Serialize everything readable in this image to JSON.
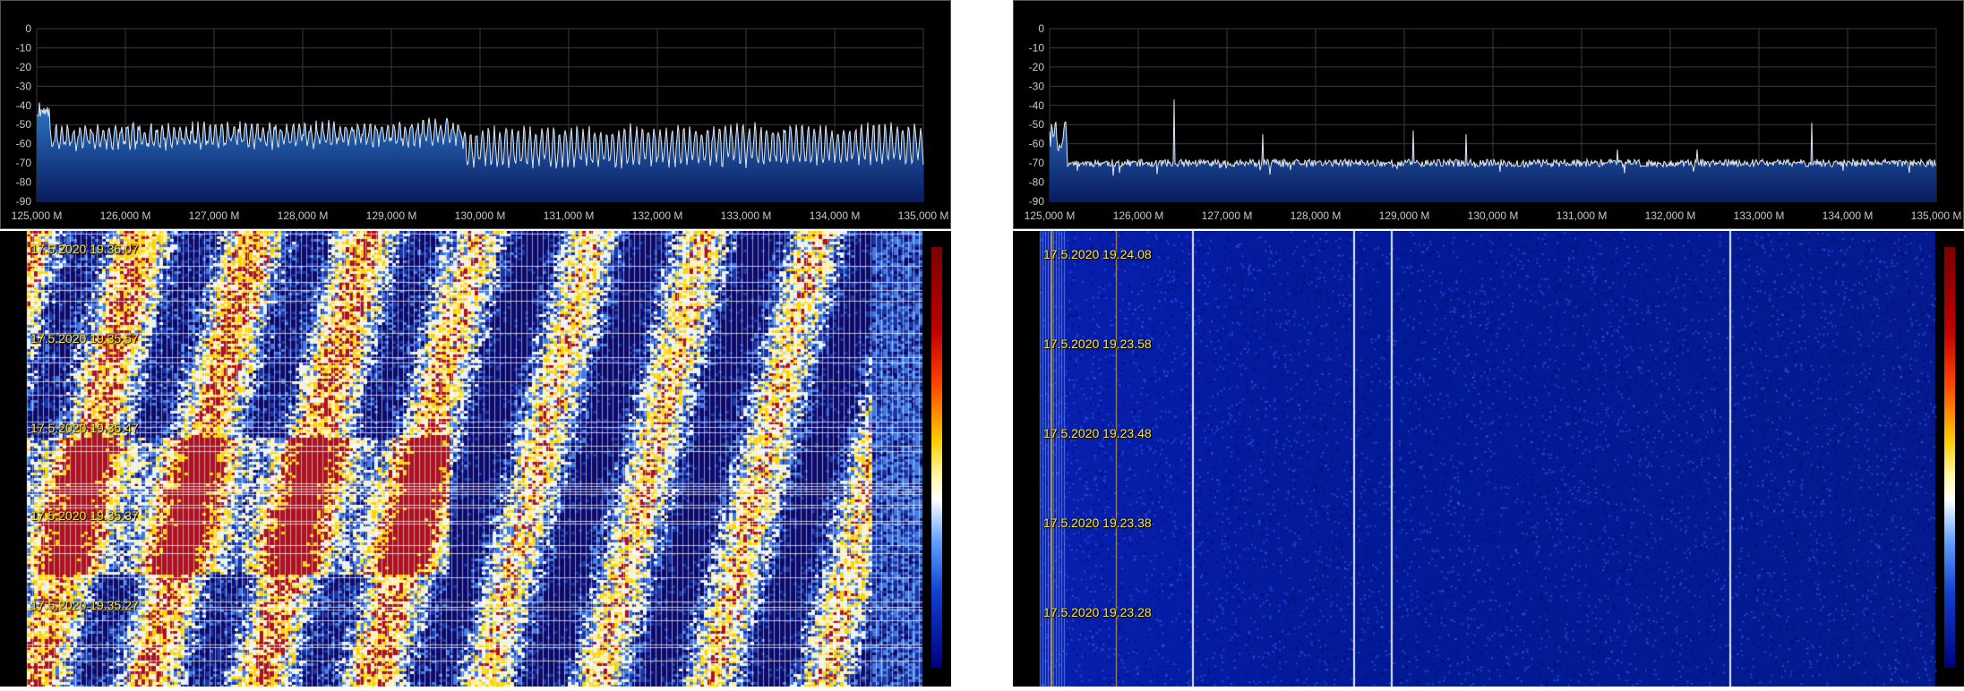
{
  "colors": {
    "background": "#000000",
    "grid": "#3a3a3a",
    "trace": "#dfe6f2",
    "fill_top": "#2b78c8",
    "fill_bottom": "#0a1c60",
    "timestamp": "#ffe63a"
  },
  "panels": [
    {
      "name": "left",
      "chart_type": "line",
      "y_ticks": [
        "0",
        "-10",
        "-20",
        "-30",
        "-40",
        "-50",
        "-60",
        "-70",
        "-80",
        "-90"
      ],
      "x_ticks": [
        "125,000 M",
        "126,000 M",
        "127,000 M",
        "128,000 M",
        "129,000 M",
        "130,000 M",
        "131,000 M",
        "132,000 M",
        "133,000 M",
        "134,000 M",
        "135,000 M"
      ],
      "ylim": [
        -90,
        0
      ],
      "xlim_mhz": [
        125000,
        135000
      ],
      "waterfall": {
        "style": "busy",
        "timestamps": [
          "17.5.2020 19.36.07",
          "17.5.2020 19.35.57",
          "17.5.2020 19.35.47",
          "17.5.2020 19.35.37",
          "17.5.2020 19.35.27"
        ]
      }
    },
    {
      "name": "right",
      "chart_type": "line",
      "y_ticks": [
        "0",
        "-10",
        "-20",
        "-30",
        "-40",
        "-50",
        "-60",
        "-70",
        "-80",
        "-90"
      ],
      "x_ticks": [
        "125,000 M",
        "126,000 M",
        "127,000 M",
        "128,000 M",
        "129,000 M",
        "130,000 M",
        "131,000 M",
        "132,000 M",
        "133,000 M",
        "134,000 M",
        "135,000 M"
      ],
      "ylim": [
        -90,
        0
      ],
      "xlim_mhz": [
        125000,
        135000
      ],
      "waterfall": {
        "style": "quiet",
        "timestamps": [
          "17.5.2020 19.24.08",
          "17.5.2020 19.23.58",
          "17.5.2020 19.23.48",
          "17.5.2020 19.23.38",
          "17.5.2020 19.23.28"
        ]
      }
    }
  ]
}
